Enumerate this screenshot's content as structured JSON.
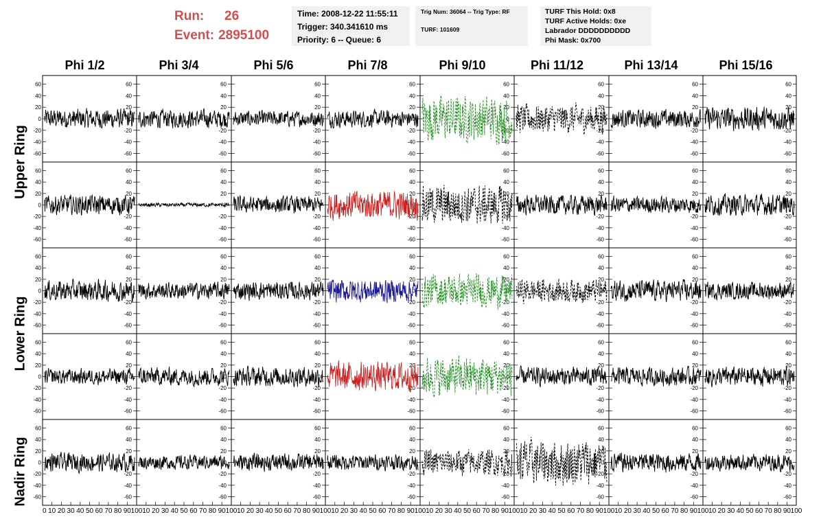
{
  "header": {
    "run_label": "Run:",
    "run_value": "26",
    "event_label": "Event:",
    "event_value": "2895100"
  },
  "info_box_time": {
    "time": "Time: 2008-12-22 11:55:11",
    "trigger": "Trigger: 340.341610 ms",
    "priority": "Priority: 6 -- Queue: 6"
  },
  "info_box_trig": {
    "trig": "Trig Num: 36064 -- Trig Type: RF",
    "turf": "TURF: 101609"
  },
  "info_box_turf": {
    "this_hold": "TURF This Hold: 0x8",
    "active_holds": "TURF Active Holds: 0xe",
    "labrador": "Labrador DDDDDDDDDD",
    "phi_mask": "Phi Mask: 0x700"
  },
  "colors": {
    "normal": "#000000",
    "green": "#1f8f1f",
    "red": "#cc2020",
    "blue": "#1a1a99",
    "title_red": "#d05050",
    "box_bg": "#f1f1f1"
  },
  "chart_data": {
    "type": "line",
    "columns": [
      "Phi 1/2",
      "Phi 3/4",
      "Phi 5/6",
      "Phi 7/8",
      "Phi 9/10",
      "Phi 11/12",
      "Phi 13/14",
      "Phi 15/16"
    ],
    "rows": [
      "Upper Ring",
      "Upper Ring",
      "Lower Ring",
      "Lower Ring",
      "Nadir Ring"
    ],
    "ring_labels": [
      "Upper Ring",
      "Lower Ring",
      "Nadir Ring"
    ],
    "ylim": [
      -75,
      75
    ],
    "yticks": [
      "60",
      "40",
      "20",
      "0",
      "-20",
      "-40",
      "-60"
    ],
    "yticks_nadir": [
      "60",
      "40",
      "20",
      "0",
      "-20",
      "-40",
      "-60"
    ],
    "xlim": [
      0,
      100
    ],
    "xticks": [
      "0",
      "10",
      "20",
      "30",
      "40",
      "50",
      "60",
      "70",
      "80",
      "90",
      "100"
    ],
    "panels": [
      [
        {
          "color": "normal",
          "amp": 15,
          "style": "solid"
        },
        {
          "color": "normal",
          "amp": 14,
          "style": "solid"
        },
        {
          "color": "normal",
          "amp": 12,
          "style": "solid"
        },
        {
          "color": "normal",
          "amp": 13,
          "style": "solid"
        },
        {
          "color": "green",
          "amp": 35,
          "style": "dashed"
        },
        {
          "color": "normal",
          "amp": 22,
          "style": "dashed"
        },
        {
          "color": "normal",
          "amp": 14,
          "style": "solid"
        },
        {
          "color": "normal",
          "amp": 18,
          "style": "solid"
        }
      ],
      [
        {
          "color": "normal",
          "amp": 15,
          "style": "solid"
        },
        {
          "color": "normal",
          "amp": 3,
          "style": "solid"
        },
        {
          "color": "normal",
          "amp": 13,
          "style": "solid"
        },
        {
          "color": "red",
          "amp": 22,
          "style": "solid"
        },
        {
          "color": "normal",
          "amp": 30,
          "style": "dashed"
        },
        {
          "color": "normal",
          "amp": 15,
          "style": "solid"
        },
        {
          "color": "normal",
          "amp": 13,
          "style": "solid"
        },
        {
          "color": "normal",
          "amp": 16,
          "style": "solid"
        }
      ],
      [
        {
          "color": "normal",
          "amp": 16,
          "style": "solid"
        },
        {
          "color": "normal",
          "amp": 13,
          "style": "solid"
        },
        {
          "color": "normal",
          "amp": 14,
          "style": "solid"
        },
        {
          "color": "blue",
          "amp": 18,
          "style": "solid"
        },
        {
          "color": "green",
          "amp": 25,
          "style": "dashed"
        },
        {
          "color": "normal",
          "amp": 18,
          "style": "dashed"
        },
        {
          "color": "normal",
          "amp": 16,
          "style": "solid"
        },
        {
          "color": "normal",
          "amp": 13,
          "style": "solid"
        }
      ],
      [
        {
          "color": "normal",
          "amp": 12,
          "style": "solid"
        },
        {
          "color": "normal",
          "amp": 14,
          "style": "solid"
        },
        {
          "color": "normal",
          "amp": 15,
          "style": "solid"
        },
        {
          "color": "red",
          "amp": 22,
          "style": "solid"
        },
        {
          "color": "green",
          "amp": 30,
          "style": "dashed"
        },
        {
          "color": "normal",
          "amp": 14,
          "style": "solid"
        },
        {
          "color": "normal",
          "amp": 14,
          "style": "solid"
        },
        {
          "color": "normal",
          "amp": 15,
          "style": "solid"
        }
      ],
      [
        {
          "color": "normal",
          "amp": 14,
          "style": "solid"
        },
        {
          "color": "normal",
          "amp": 11,
          "style": "solid"
        },
        {
          "color": "normal",
          "amp": 13,
          "style": "solid"
        },
        {
          "color": "normal",
          "amp": 12,
          "style": "solid"
        },
        {
          "color": "normal",
          "amp": 20,
          "style": "dashed"
        },
        {
          "color": "normal",
          "amp": 35,
          "style": "dashed"
        },
        {
          "color": "normal",
          "amp": 15,
          "style": "solid"
        },
        {
          "color": "normal",
          "amp": 13,
          "style": "solid"
        }
      ]
    ]
  }
}
